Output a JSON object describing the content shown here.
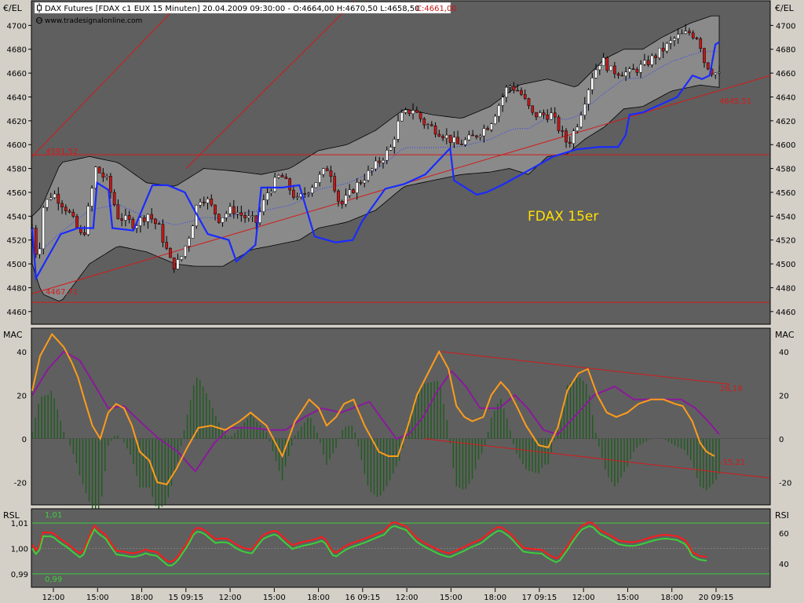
{
  "header": {
    "title": "DAX Futures [FDAX c1 EUX  15 Minuten] 20.04.2009 09:30:00 - O:4664,00 H:4670,50 L:4658,50",
    "close": "C:4661,00",
    "source": "www.tradesignalonline.com",
    "currency_left": "€/EL",
    "currency_right": "€/EL"
  },
  "colors": {
    "background": "#d4d0c8",
    "panel": "#5f5f5f",
    "candle_up": "#ffffff",
    "candle_down": "#c21818",
    "bollinger_fill": "#8a8a8a",
    "blue_line": "#1a2bff",
    "macd": "#ff9c1a",
    "signal": "#8a1a9a",
    "histogram": "#1f5c1f",
    "rsi_red": "#ff1a1a",
    "rsi_green": "#3ccf3c",
    "trendline": "#d41a1a",
    "annotation_text": "#ffe000"
  },
  "annotations": {
    "chart_label": "FDAX 15er",
    "price_hi": "4591,52",
    "price_lo": "4467,71",
    "price_last": "4645,51",
    "macd_top": "26,19",
    "macd_bottom": "-15,21",
    "rsi_top": "1,01",
    "rsi_bottom": "0,99"
  },
  "panels": {
    "macd_title": "MAC",
    "macd_title_right": "MAC",
    "rsi_title": "RSL",
    "rsi_title_right": "RSI"
  },
  "chart_data": [
    {
      "type": "candlestick",
      "title": "DAX Futures [FDAX c1 EUX  15 Minuten]",
      "ylabel": "€/EL",
      "ylim": [
        4450,
        4720
      ],
      "yticks": [
        4460,
        4480,
        4500,
        4520,
        4540,
        4560,
        4580,
        4600,
        4620,
        4640,
        4660,
        4680,
        4700
      ],
      "xticks": [
        "12:00",
        "15:00",
        "18:00",
        "15 09:15",
        "12:00",
        "15:00",
        "18:00",
        "16 09:15",
        "12:00",
        "15:00",
        "18:00",
        "17 09:15",
        "12:00",
        "15:00",
        "18:00",
        "20 09:15"
      ],
      "price_path": [
        [
          0,
          4530
        ],
        [
          6,
          4500
        ],
        [
          12,
          4548
        ],
        [
          22,
          4560
        ],
        [
          38,
          4545
        ],
        [
          52,
          4524
        ],
        [
          56,
          4528
        ],
        [
          68,
          4580
        ],
        [
          80,
          4570
        ],
        [
          92,
          4540
        ],
        [
          110,
          4533
        ],
        [
          124,
          4542
        ],
        [
          136,
          4530
        ],
        [
          150,
          4498
        ],
        [
          158,
          4502
        ],
        [
          170,
          4528
        ],
        [
          178,
          4555
        ],
        [
          186,
          4555
        ],
        [
          200,
          4538
        ],
        [
          214,
          4546
        ],
        [
          226,
          4540
        ],
        [
          240,
          4535
        ],
        [
          252,
          4560
        ],
        [
          266,
          4575
        ],
        [
          284,
          4553
        ],
        [
          300,
          4566
        ],
        [
          318,
          4582
        ],
        [
          330,
          4548
        ],
        [
          346,
          4565
        ],
        [
          364,
          4579
        ],
        [
          384,
          4597
        ],
        [
          394,
          4623
        ],
        [
          408,
          4630
        ],
        [
          420,
          4618
        ],
        [
          436,
          4611
        ],
        [
          456,
          4600
        ],
        [
          472,
          4606
        ],
        [
          490,
          4617
        ],
        [
          510,
          4650
        ],
        [
          522,
          4645
        ],
        [
          536,
          4625
        ],
        [
          556,
          4625
        ],
        [
          574,
          4600
        ],
        [
          584,
          4618
        ],
        [
          600,
          4658
        ],
        [
          610,
          4672
        ],
        [
          620,
          4662
        ],
        [
          640,
          4660
        ],
        [
          656,
          4667
        ],
        [
          676,
          4680
        ],
        [
          690,
          4690
        ],
        [
          704,
          4694
        ],
        [
          714,
          4690
        ],
        [
          720,
          4670
        ],
        [
          728,
          4662
        ],
        [
          736,
          4658
        ]
      ],
      "blue_line_path": [
        [
          0,
          4530
        ],
        [
          4,
          4488
        ],
        [
          30,
          4525
        ],
        [
          48,
          4530
        ],
        [
          64,
          4530
        ],
        [
          68,
          4568
        ],
        [
          80,
          4562
        ],
        [
          84,
          4530
        ],
        [
          106,
          4528
        ],
        [
          126,
          4566
        ],
        [
          142,
          4566
        ],
        [
          160,
          4560
        ],
        [
          170,
          4545
        ],
        [
          184,
          4525
        ],
        [
          206,
          4520
        ],
        [
          214,
          4502
        ],
        [
          234,
          4516
        ],
        [
          240,
          4564
        ],
        [
          262,
          4564
        ],
        [
          280,
          4566
        ],
        [
          296,
          4523
        ],
        [
          318,
          4518
        ],
        [
          336,
          4520
        ],
        [
          346,
          4536
        ],
        [
          370,
          4563
        ],
        [
          390,
          4567
        ],
        [
          412,
          4575
        ],
        [
          438,
          4597
        ],
        [
          442,
          4570
        ],
        [
          466,
          4558
        ],
        [
          476,
          4560
        ],
        [
          492,
          4566
        ],
        [
          524,
          4580
        ],
        [
          546,
          4590
        ],
        [
          570,
          4596
        ],
        [
          594,
          4598
        ],
        [
          614,
          4598
        ],
        [
          622,
          4608
        ],
        [
          626,
          4625
        ],
        [
          640,
          4627
        ],
        [
          676,
          4640
        ],
        [
          692,
          4658
        ],
        [
          702,
          4655
        ],
        [
          710,
          4658
        ],
        [
          716,
          4684
        ],
        [
          720,
          4686
        ]
      ],
      "bollinger_upper": [
        [
          0,
          4540
        ],
        [
          10,
          4548
        ],
        [
          30,
          4585
        ],
        [
          60,
          4590
        ],
        [
          90,
          4585
        ],
        [
          120,
          4568
        ],
        [
          150,
          4565
        ],
        [
          180,
          4580
        ],
        [
          210,
          4578
        ],
        [
          240,
          4575
        ],
        [
          270,
          4580
        ],
        [
          300,
          4595
        ],
        [
          330,
          4600
        ],
        [
          360,
          4612
        ],
        [
          390,
          4630
        ],
        [
          420,
          4625
        ],
        [
          450,
          4622
        ],
        [
          480,
          4632
        ],
        [
          510,
          4650
        ],
        [
          540,
          4655
        ],
        [
          570,
          4648
        ],
        [
          600,
          4672
        ],
        [
          620,
          4680
        ],
        [
          640,
          4680
        ],
        [
          660,
          4690
        ],
        [
          690,
          4702
        ],
        [
          712,
          4708
        ],
        [
          720,
          4708
        ]
      ],
      "bollinger_lower": [
        [
          0,
          4500
        ],
        [
          10,
          4475
        ],
        [
          30,
          4468
        ],
        [
          60,
          4500
        ],
        [
          90,
          4515
        ],
        [
          120,
          4510
        ],
        [
          150,
          4500
        ],
        [
          170,
          4498
        ],
        [
          200,
          4498
        ],
        [
          230,
          4512
        ],
        [
          250,
          4515
        ],
        [
          280,
          4520
        ],
        [
          300,
          4530
        ],
        [
          330,
          4535
        ],
        [
          360,
          4545
        ],
        [
          390,
          4565
        ],
        [
          420,
          4570
        ],
        [
          450,
          4575
        ],
        [
          480,
          4577
        ],
        [
          500,
          4580
        ],
        [
          520,
          4575
        ],
        [
          540,
          4590
        ],
        [
          560,
          4592
        ],
        [
          580,
          4605
        ],
        [
          600,
          4615
        ],
        [
          620,
          4630
        ],
        [
          640,
          4632
        ],
        [
          670,
          4645
        ],
        [
          700,
          4650
        ],
        [
          720,
          4648
        ]
      ],
      "horizontal_levels": [
        4591.52,
        4467.71
      ],
      "trend_lines": [
        {
          "from": [
            0,
            4475
          ],
          "to": [
            940,
            4658
          ]
        },
        {
          "from": [
            0,
            4590
          ],
          "to": [
            190,
            4720
          ]
        },
        {
          "from": [
            196,
            4580
          ],
          "to": [
            410,
            4720
          ]
        }
      ]
    },
    {
      "type": "macd",
      "title": "MAC",
      "ylim": [
        -30,
        50
      ],
      "yticks": [
        -20,
        0,
        20,
        40
      ],
      "macd": [
        [
          0,
          22
        ],
        [
          10,
          38
        ],
        [
          25,
          48
        ],
        [
          40,
          42
        ],
        [
          50,
          35
        ],
        [
          58,
          28
        ],
        [
          66,
          18
        ],
        [
          76,
          6
        ],
        [
          86,
          0
        ],
        [
          96,
          12
        ],
        [
          106,
          16
        ],
        [
          116,
          14
        ],
        [
          126,
          6
        ],
        [
          136,
          -6
        ],
        [
          148,
          -10
        ],
        [
          158,
          -20
        ],
        [
          170,
          -21
        ],
        [
          182,
          -14
        ],
        [
          196,
          -4
        ],
        [
          210,
          5
        ],
        [
          226,
          6
        ],
        [
          244,
          4
        ],
        [
          262,
          8
        ],
        [
          276,
          12
        ],
        [
          296,
          6
        ],
        [
          316,
          -8
        ],
        [
          332,
          8
        ],
        [
          350,
          18
        ],
        [
          362,
          14
        ],
        [
          372,
          6
        ],
        [
          384,
          10
        ],
        [
          394,
          16
        ],
        [
          406,
          18
        ],
        [
          420,
          6
        ],
        [
          438,
          -6
        ],
        [
          450,
          -8
        ],
        [
          462,
          -8
        ],
        [
          474,
          5
        ],
        [
          486,
          20
        ],
        [
          500,
          30
        ],
        [
          514,
          40
        ],
        [
          526,
          32
        ],
        [
          536,
          15
        ],
        [
          546,
          10
        ],
        [
          556,
          8
        ],
        [
          570,
          10
        ],
        [
          580,
          20
        ],
        [
          592,
          26
        ],
        [
          602,
          22
        ],
        [
          612,
          15
        ],
        [
          624,
          6
        ],
        [
          640,
          -3
        ],
        [
          652,
          -4
        ],
        [
          664,
          5
        ],
        [
          676,
          22
        ],
        [
          690,
          30
        ],
        [
          702,
          32
        ],
        [
          714,
          20
        ],
        [
          726,
          12
        ],
        [
          738,
          10
        ],
        [
          752,
          12
        ],
        [
          766,
          16
        ],
        [
          782,
          18
        ],
        [
          798,
          18
        ],
        [
          812,
          16
        ],
        [
          822,
          15
        ],
        [
          834,
          8
        ],
        [
          844,
          -2
        ],
        [
          852,
          -6
        ],
        [
          862,
          -8
        ]
      ],
      "signal": [
        [
          0,
          20
        ],
        [
          20,
          32
        ],
        [
          40,
          40
        ],
        [
          60,
          36
        ],
        [
          80,
          24
        ],
        [
          96,
          14
        ],
        [
          116,
          15
        ],
        [
          136,
          8
        ],
        [
          160,
          0
        ],
        [
          184,
          -6
        ],
        [
          206,
          -15
        ],
        [
          230,
          -2
        ],
        [
          250,
          5
        ],
        [
          276,
          5
        ],
        [
          300,
          4
        ],
        [
          320,
          4
        ],
        [
          344,
          10
        ],
        [
          366,
          14
        ],
        [
          390,
          12
        ],
        [
          412,
          15
        ],
        [
          426,
          17
        ],
        [
          444,
          8
        ],
        [
          460,
          0
        ],
        [
          476,
          2
        ],
        [
          494,
          10
        ],
        [
          512,
          22
        ],
        [
          530,
          31
        ],
        [
          548,
          24
        ],
        [
          566,
          14
        ],
        [
          590,
          14
        ],
        [
          610,
          20
        ],
        [
          626,
          14
        ],
        [
          646,
          4
        ],
        [
          664,
          2
        ],
        [
          690,
          12
        ],
        [
          710,
          20
        ],
        [
          736,
          24
        ],
        [
          760,
          18
        ],
        [
          790,
          18
        ],
        [
          820,
          18
        ],
        [
          838,
          14
        ],
        [
          854,
          8
        ],
        [
          868,
          2
        ]
      ],
      "labels": {
        "upper_channel": 26.19,
        "lower_channel": -15.21
      }
    },
    {
      "type": "line",
      "title": "RSL / RSI",
      "left_ylim": [
        0.985,
        1.015
      ],
      "left_yticks": [
        0.99,
        1.0,
        1.01
      ],
      "right_yticks": [
        40,
        60
      ],
      "levels": [
        1.01,
        0.99
      ]
    }
  ]
}
